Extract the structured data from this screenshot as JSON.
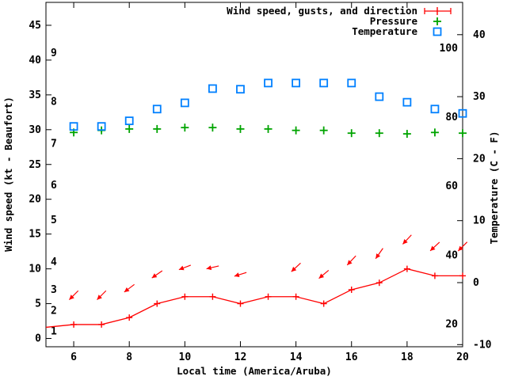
{
  "chart_data": {
    "type": "line",
    "title": "",
    "xlabel": "Local time (America/Aruba)",
    "legend_position": "top-right-inside",
    "grid": false,
    "colors": {
      "wind": "#ff0000",
      "pressure": "#00a400",
      "temperature": "#0080ff",
      "axis": "#000000",
      "background": "#ffffff"
    },
    "x_axis": {
      "range": [
        5,
        20
      ],
      "ticks_hour": [
        6,
        8,
        10,
        12,
        14,
        16,
        18,
        20
      ]
    },
    "left_axis": {
      "label": "Wind speed (kt - Beaufort)",
      "range_kt": [
        0,
        45
      ],
      "ticks_kt": [
        0,
        5,
        10,
        15,
        20,
        25,
        30,
        35,
        40,
        45
      ],
      "beaufort_marks": [
        {
          "b": "1",
          "kt": 1
        },
        {
          "b": "2",
          "kt": 4
        },
        {
          "b": "3",
          "kt": 7
        },
        {
          "b": "4",
          "kt": 11
        },
        {
          "b": "5",
          "kt": 17
        },
        {
          "b": "6",
          "kt": 22
        },
        {
          "b": "7",
          "kt": 28
        },
        {
          "b": "8",
          "kt": 34
        },
        {
          "b": "9",
          "kt": 41
        }
      ]
    },
    "right_axis": {
      "label": "Temperature (C - F)",
      "range_c": [
        -10,
        45
      ],
      "ticks_c": [
        -10,
        0,
        10,
        20,
        30,
        40
      ],
      "f_marks": [
        {
          "f": "20",
          "c": -6.7
        },
        {
          "f": "40",
          "c": 4.4
        },
        {
          "f": "60",
          "c": 15.6
        },
        {
          "f": "80",
          "c": 26.7
        },
        {
          "f": "100",
          "c": 37.8
        }
      ]
    },
    "legend": [
      {
        "label": "Wind speed, gusts, and direction",
        "series": "wind"
      },
      {
        "label": "Pressure",
        "series": "pressure"
      },
      {
        "label": "Temperature",
        "series": "temperature"
      }
    ],
    "series": [
      {
        "name": "Wind speed, gusts, and direction",
        "axis": "left",
        "unit": "kt",
        "marker": "plus",
        "line": true,
        "x": [
          5,
          6,
          7,
          8,
          9,
          10,
          11,
          12,
          13,
          14,
          15,
          16,
          17,
          18,
          19,
          20
        ],
        "values": [
          1.6,
          2,
          2,
          3,
          5,
          6,
          6,
          5,
          6,
          6,
          5,
          7,
          8,
          10,
          9,
          9
        ]
      },
      {
        "name": "Pressure",
        "axis": "left-scale",
        "marker": "plus",
        "line": false,
        "x": [
          6,
          7,
          8,
          9,
          10,
          11,
          12,
          13,
          14,
          15,
          16,
          17,
          18,
          19,
          20
        ],
        "values": [
          29.6,
          29.9,
          30.1,
          30.1,
          30.3,
          30.3,
          30.1,
          30.1,
          29.9,
          29.9,
          29.5,
          29.5,
          29.4,
          29.6,
          29.5
        ]
      },
      {
        "name": "Temperature",
        "axis": "right",
        "unit": "C",
        "marker": "open-square",
        "line": false,
        "x": [
          6,
          7,
          8,
          9,
          10,
          11,
          12,
          13,
          14,
          15,
          16,
          17,
          18,
          19,
          20
        ],
        "values": [
          25.2,
          25.2,
          26.1,
          28.0,
          29.0,
          31.3,
          31.2,
          32.2,
          32.2,
          32.2,
          32.2,
          30.0,
          29.1,
          28.0,
          27.3
        ]
      }
    ],
    "arrows": {
      "description": "wind direction arrows pointing down-left above the wind speed line",
      "hours": [
        6,
        7,
        8,
        9,
        10,
        11,
        12,
        14,
        15,
        16,
        17,
        18,
        19,
        20
      ],
      "angle_deg_below_left_horizontal": [
        45,
        45,
        37,
        35,
        21,
        13,
        17,
        43,
        40,
        47,
        55,
        47,
        43,
        45
      ],
      "offset_kt_above_speed": 4.2
    }
  }
}
